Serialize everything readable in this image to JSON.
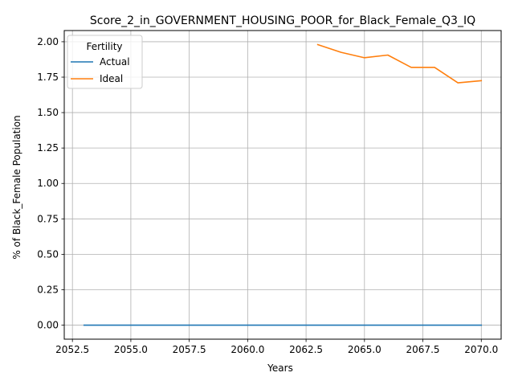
{
  "chart_data": {
    "type": "line",
    "title": "Score_2_in_GOVERNMENT_HOUSING_POOR_for_Black_Female_Q3_IQ",
    "xlabel": "Years",
    "ylabel": "% of Black_Female Population",
    "xlim": [
      2052.15,
      2070.85
    ],
    "ylim": [
      -0.099,
      2.079
    ],
    "xticks": [
      2052.5,
      2055.0,
      2057.5,
      2060.0,
      2062.5,
      2065.0,
      2067.5,
      2070.0
    ],
    "xtick_labels": [
      "2052.5",
      "2055.0",
      "2057.5",
      "2060.0",
      "2062.5",
      "2065.0",
      "2067.5",
      "2070.0"
    ],
    "yticks": [
      0.0,
      0.25,
      0.5,
      0.75,
      1.0,
      1.25,
      1.5,
      1.75,
      2.0
    ],
    "ytick_labels": [
      "0.00",
      "0.25",
      "0.50",
      "0.75",
      "1.00",
      "1.25",
      "1.50",
      "1.75",
      "2.00"
    ],
    "grid": true,
    "legend": {
      "title": "Fertility",
      "placement": "top-left"
    },
    "series": [
      {
        "name": "Actual",
        "color": "#1f77b4",
        "x": [
          2053,
          2054,
          2055,
          2056,
          2057,
          2058,
          2059,
          2060,
          2061,
          2062,
          2063,
          2064,
          2065,
          2066,
          2067,
          2068,
          2069,
          2070
        ],
        "values": [
          0,
          0,
          0,
          0,
          0,
          0,
          0,
          0,
          0,
          0,
          0,
          0,
          0,
          0,
          0,
          0,
          0,
          0
        ]
      },
      {
        "name": "Ideal",
        "color": "#ff7f0e",
        "x": [
          2063,
          2064,
          2065,
          2066,
          2067,
          2068,
          2069,
          2070
        ],
        "values": [
          1.98,
          1.925,
          1.887,
          1.906,
          1.819,
          1.819,
          1.71,
          1.725
        ]
      }
    ]
  }
}
